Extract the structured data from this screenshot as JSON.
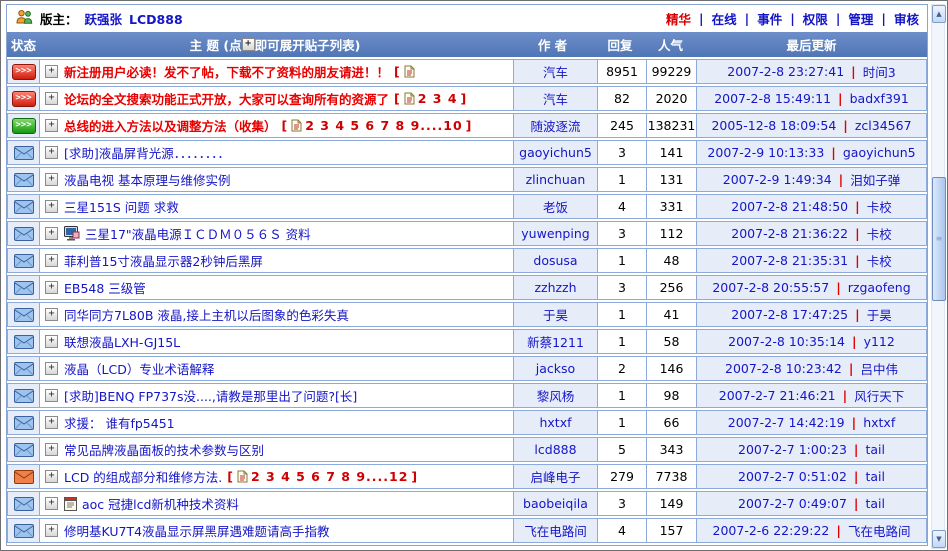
{
  "topbar": {
    "moderator_label": "版主：",
    "moderators": [
      "跃强张",
      "LCD888"
    ],
    "nav_links": [
      {
        "label": "精华",
        "accent": true
      },
      {
        "label": "在线",
        "accent": false
      },
      {
        "label": "事件",
        "accent": false
      },
      {
        "label": "权限",
        "accent": false
      },
      {
        "label": "管理",
        "accent": false
      },
      {
        "label": "审核",
        "accent": false
      }
    ]
  },
  "table_header": {
    "status": "状态",
    "subject_prefix": "主 题 (点",
    "subject_suffix": "即可展开贴子列表)",
    "author": "作 者",
    "replies": "回复",
    "views": "人气",
    "last_update": "最后更新"
  },
  "icons": {
    "expand_glyph": "+",
    "pinned_glyph": ">>>",
    "scroll_up_glyph": "▲",
    "scroll_down_glyph": "▼",
    "thumb_grip_glyph": "≡"
  },
  "colors": {
    "header_bg": "#5c80c0",
    "grid_border": "#8cabdc",
    "light_cell_bg": "#e7edf8",
    "link_blue": "#1515c8",
    "accent_red": "#d90000",
    "title_red": "#e80000"
  },
  "rows": [
    {
      "status_icon": "pinned-red-icon",
      "attach_icon": null,
      "title": "新注册用户必读！发不了帖，下载不了资料的朋友请进！！",
      "title_color": "red",
      "pages": "",
      "author": "汽车",
      "replies": "8951",
      "views": "99229",
      "updated": "2007-2-8 23:27:41",
      "updater": "时间3"
    },
    {
      "status_icon": "pinned-red-icon",
      "attach_icon": null,
      "title": "论坛的全文搜索功能正式开放，大家可以查询所有的资源了",
      "title_color": "red",
      "pages": "2 3 4",
      "author": "汽车",
      "replies": "82",
      "views": "2020",
      "updated": "2007-2-8 15:49:11",
      "updater": "badxf391"
    },
    {
      "status_icon": "pinned-green-icon",
      "attach_icon": null,
      "title": "总线的进入方法以及调整方法（收集）",
      "title_color": "red",
      "pages": "2 3 4 5 6 7 8 9....10",
      "author": "随波逐流",
      "replies": "245",
      "views": "138231",
      "updated": "2005-12-8 18:09:54",
      "updater": "zcl34567"
    },
    {
      "status_icon": "envelope-blue-icon",
      "attach_icon": null,
      "title": "[求助]液晶屏背光源．．．．．．．．",
      "title_color": "blue",
      "pages": null,
      "author": "gaoyichun5",
      "replies": "3",
      "views": "141",
      "updated": "2007-2-9 10:13:33",
      "updater": "gaoyichun5"
    },
    {
      "status_icon": "envelope-blue-icon",
      "attach_icon": null,
      "title": "液晶电视 基本原理与维修实例",
      "title_color": "blue",
      "pages": null,
      "author": "zlinchuan",
      "replies": "1",
      "views": "131",
      "updated": "2007-2-9 1:49:34",
      "updater": "泪如子弹"
    },
    {
      "status_icon": "envelope-blue-icon",
      "attach_icon": null,
      "title": "三星151S 问题 求救",
      "title_color": "blue",
      "pages": null,
      "author": "老饭",
      "replies": "4",
      "views": "331",
      "updated": "2007-2-8 21:48:50",
      "updater": "卡校"
    },
    {
      "status_icon": "envelope-blue-icon",
      "attach_icon": "monitor-disk-icon",
      "title": "三星17\"液晶电源ＩＣＤＭ０５６Ｓ 资料",
      "title_color": "blue",
      "pages": null,
      "author": "yuwenping",
      "replies": "3",
      "views": "112",
      "updated": "2007-2-8 21:36:22",
      "updater": "卡校"
    },
    {
      "status_icon": "envelope-blue-icon",
      "attach_icon": null,
      "title": "菲利普15寸液晶显示器2秒钟后黑屏",
      "title_color": "blue",
      "pages": null,
      "author": "dosusa",
      "replies": "1",
      "views": "48",
      "updated": "2007-2-8 21:35:31",
      "updater": "卡校"
    },
    {
      "status_icon": "envelope-blue-icon",
      "attach_icon": null,
      "title": "EB548 三级管",
      "title_color": "blue",
      "pages": null,
      "author": "zzhzzh",
      "replies": "3",
      "views": "256",
      "updated": "2007-2-8 20:55:57",
      "updater": "rzgaofeng"
    },
    {
      "status_icon": "envelope-blue-icon",
      "attach_icon": null,
      "title": "同华同方7L80B 液晶,接上主机以后图象的色彩失真",
      "title_color": "blue",
      "pages": null,
      "author": "于昊",
      "replies": "1",
      "views": "41",
      "updated": "2007-2-8 17:47:25",
      "updater": "于昊"
    },
    {
      "status_icon": "envelope-blue-icon",
      "attach_icon": null,
      "title": "联想液晶LXH-GJ15L",
      "title_color": "blue",
      "pages": null,
      "author": "新蔡1211",
      "replies": "1",
      "views": "58",
      "updated": "2007-2-8 10:35:14",
      "updater": "y112"
    },
    {
      "status_icon": "envelope-blue-icon",
      "attach_icon": null,
      "title": "液晶（LCD）专业术语解释",
      "title_color": "blue",
      "pages": null,
      "author": "jackso",
      "replies": "2",
      "views": "146",
      "updated": "2007-2-8 10:23:42",
      "updater": "吕中伟"
    },
    {
      "status_icon": "envelope-blue-icon",
      "attach_icon": null,
      "title": "[求助]BENQ FP737s没....,请教是那里出了问题?[长]",
      "title_color": "blue",
      "pages": null,
      "author": "黎风杨",
      "replies": "1",
      "views": "98",
      "updated": "2007-2-7 21:46:21",
      "updater": "风行天下"
    },
    {
      "status_icon": "envelope-blue-icon",
      "attach_icon": null,
      "title": "求援： 谁有fp5451",
      "title_color": "blue",
      "pages": null,
      "author": "hxtxf",
      "replies": "1",
      "views": "66",
      "updated": "2007-2-7 14:42:19",
      "updater": "hxtxf"
    },
    {
      "status_icon": "envelope-blue-icon",
      "attach_icon": null,
      "title": "常见品牌液晶面板的技术参数与区别",
      "title_color": "blue",
      "pages": null,
      "author": "lcd888",
      "replies": "5",
      "views": "343",
      "updated": "2007-2-7 1:00:23",
      "updater": "tail"
    },
    {
      "status_icon": "envelope-orange-icon",
      "attach_icon": null,
      "title": "LCD 的组成部分和维修方法.",
      "title_color": "blue",
      "pages": "2 3 4 5 6 7 8 9....12",
      "author": "启峰电子",
      "replies": "279",
      "views": "7738",
      "updated": "2007-2-7 0:51:02",
      "updater": "tail"
    },
    {
      "status_icon": "envelope-blue-icon",
      "attach_icon": "notepad-icon",
      "title": "aoc 冠捷lcd新机种技术资料",
      "title_color": "blue",
      "pages": null,
      "author": "baobeiqila",
      "replies": "3",
      "views": "149",
      "updated": "2007-2-7 0:49:07",
      "updater": "tail"
    },
    {
      "status_icon": "envelope-blue-icon",
      "attach_icon": null,
      "title": "修明基KU7T4液晶显示屏黑屏遇难题请高手指教",
      "title_color": "blue",
      "pages": null,
      "author": "飞在电路间",
      "replies": "4",
      "views": "157",
      "updated": "2007-2-6 22:29:22",
      "updater": "飞在电路间"
    }
  ]
}
